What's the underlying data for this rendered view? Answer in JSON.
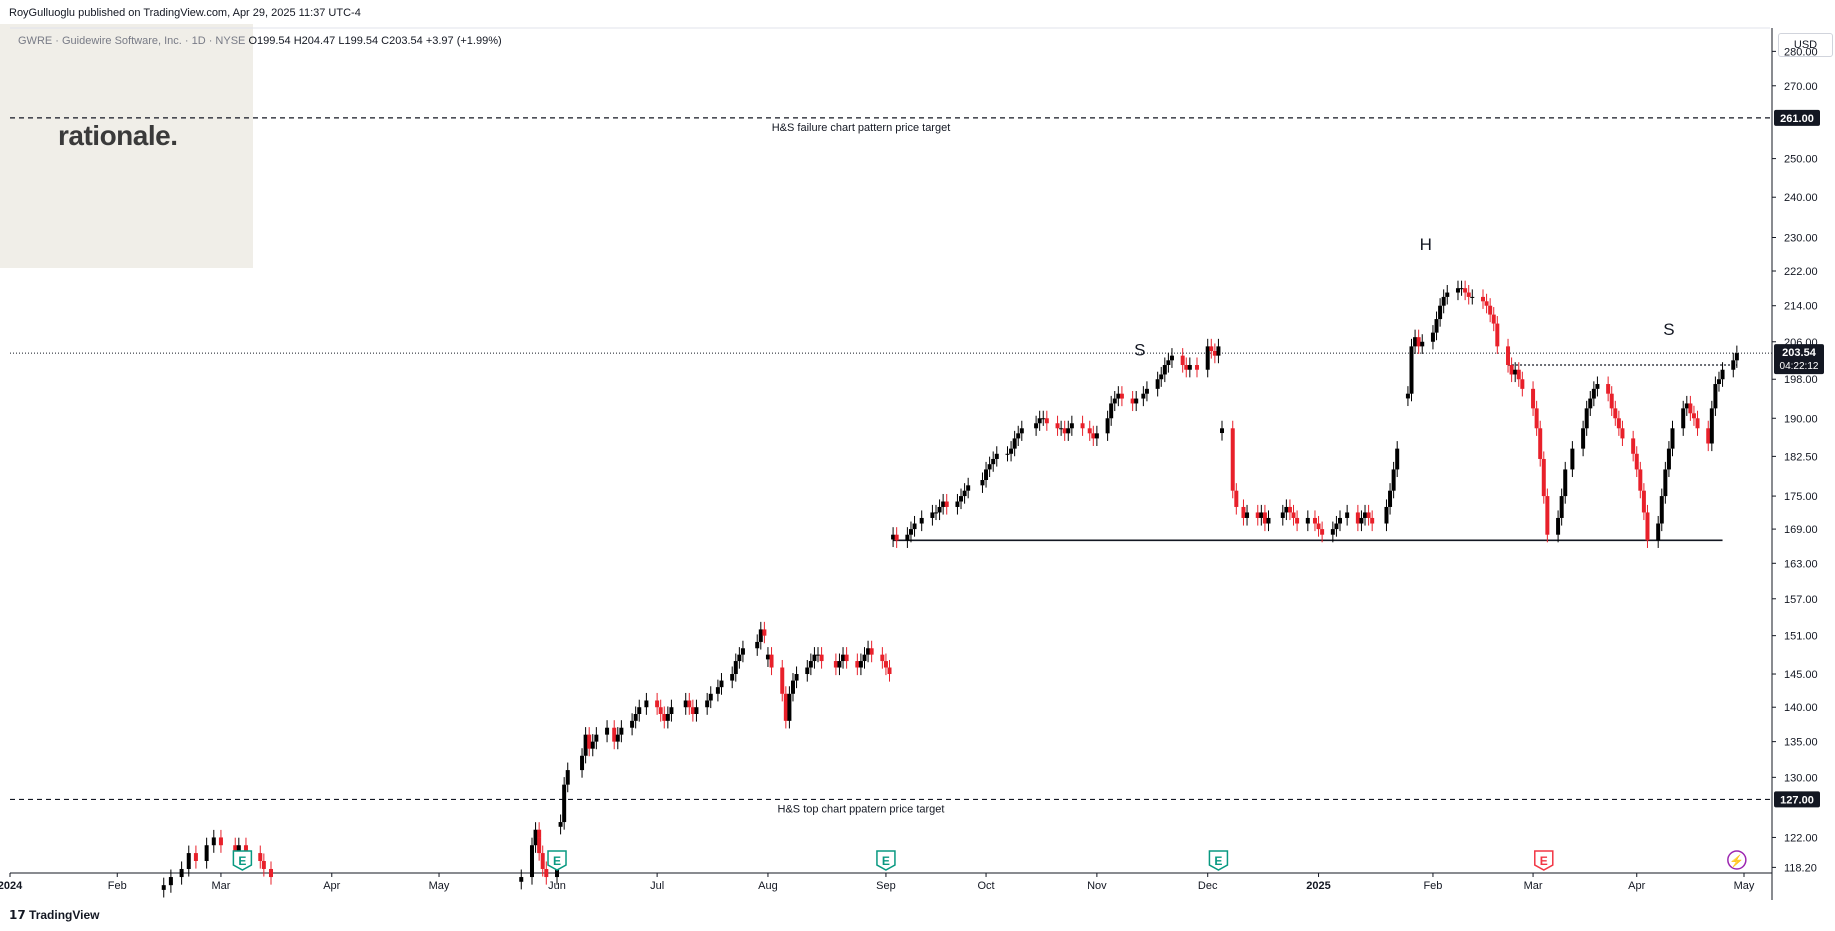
{
  "header": {
    "published": "RoyGulluoglu published on TradingView.com, Apr 29, 2025 11:37 UTC-4",
    "symbol": "GWRE · Guidewire Software, Inc. · 1D · NYSE",
    "ohlc": "O199.54 H204.47 L199.54 C203.54 +3.97 (+1.99%)"
  },
  "watermark": "rationale.",
  "currency": "USD",
  "footer_brand": "TradingView",
  "colors": {
    "up": "#000000",
    "down": "#e8202a",
    "grid": "#f0f3fa",
    "axis": "#131722"
  },
  "chart_data": {
    "type": "candlestick",
    "price_axis": {
      "ticks": [
        280.0,
        270.0,
        261.0,
        250.0,
        240.0,
        230.0,
        222.0,
        214.0,
        206.0,
        198.0,
        190.0,
        182.5,
        175.0,
        169.0,
        163.0,
        157.0,
        151.0,
        145.0,
        140.0,
        135.0,
        130.0,
        127.0,
        122.0,
        118.2
      ],
      "tick_labels": [
        "280.00",
        "270.00",
        "250.00",
        "240.00",
        "230.00",
        "222.00",
        "214.00",
        "206.00",
        "198.00",
        "190.00",
        "182.50",
        "175.00",
        "169.00",
        "163.00",
        "157.00",
        "151.00",
        "145.00",
        "140.00",
        "135.00",
        "130.00",
        "122.00",
        "118.20"
      ],
      "scale": "log",
      "ylim": [
        117.5,
        287
      ]
    },
    "time_axis": {
      "labels": [
        "2024",
        "Feb",
        "Mar",
        "Apr",
        "May",
        "Jun",
        "Jul",
        "Aug",
        "Sep",
        "Oct",
        "Nov",
        "Dec",
        "2025",
        "Feb",
        "Mar",
        "Apr",
        "May"
      ],
      "dates": [
        "2024-01-02",
        "2024-02-01",
        "2024-03-01",
        "2024-04-01",
        "2024-05-01",
        "2024-06-03",
        "2024-07-01",
        "2024-08-01",
        "2024-09-03",
        "2024-10-01",
        "2024-11-01",
        "2024-12-02",
        "2025-01-02",
        "2025-02-03",
        "2025-03-03",
        "2025-04-01",
        "2025-05-01"
      ]
    },
    "current_price": {
      "value": 203.54,
      "label": "203.54",
      "countdown": "04:22:12"
    },
    "levels": [
      {
        "value": 261.0,
        "label": "261.00",
        "text": "H&S failure chart pattern price target",
        "style": "dashed"
      },
      {
        "value": 127.0,
        "label": "127.00",
        "text": "H&S top chart ppatern price target",
        "style": "dashed"
      },
      {
        "value": 167.0,
        "text": "",
        "style": "solid",
        "from": "2024-09-05",
        "to": "2025-04-25"
      },
      {
        "value": 201.0,
        "text": "",
        "style": "dotted",
        "from": "2025-02-24",
        "to": "2025-04-29"
      }
    ],
    "pattern_labels": [
      {
        "text": "S",
        "date": "2024-11-13",
        "value": 203
      },
      {
        "text": "H",
        "date": "2025-02-01",
        "value": 227
      },
      {
        "text": "S",
        "date": "2025-04-10",
        "value": 207.5
      }
    ],
    "events": [
      {
        "type": "earnings",
        "glyph": "E",
        "date": "2024-03-07",
        "color": "#089981"
      },
      {
        "type": "earnings",
        "glyph": "E",
        "date": "2024-06-03",
        "color": "#089981"
      },
      {
        "type": "earnings",
        "glyph": "E",
        "date": "2024-09-03",
        "color": "#089981"
      },
      {
        "type": "earnings",
        "glyph": "E",
        "date": "2024-12-05",
        "color": "#089981"
      },
      {
        "type": "earnings",
        "glyph": "E",
        "date": "2025-03-06",
        "color": "#f23645"
      },
      {
        "type": "dividend",
        "glyph": "⚡",
        "date": "2025-04-29",
        "color": "#9c27b0"
      }
    ],
    "segments": [
      {
        "start": "2024-02-14",
        "end": "2024-03-15",
        "prices": [
          116,
          117,
          118,
          120,
          119,
          121,
          122,
          121,
          120,
          121,
          120,
          119,
          118,
          117
        ]
      },
      {
        "start": "2024-05-24",
        "end": "2024-06-03",
        "prices": [
          117,
          121,
          123,
          122,
          120,
          118,
          117,
          118
        ]
      },
      {
        "start": "2024-06-04",
        "end": "2024-07-31",
        "prices": [
          124,
          129,
          131,
          133,
          136,
          134,
          135,
          136,
          137,
          135,
          136,
          137,
          138,
          139,
          140,
          141,
          140,
          139,
          138,
          139,
          140,
          141,
          140,
          139,
          140,
          141,
          142,
          143,
          144,
          145,
          147,
          148,
          149,
          150,
          152,
          151
        ]
      },
      {
        "start": "2024-08-01",
        "end": "2024-09-04",
        "prices": [
          148,
          146,
          142,
          138,
          142,
          144,
          145,
          146,
          147,
          148,
          148,
          147,
          146,
          147,
          148,
          147,
          146,
          147,
          148,
          149,
          148,
          147,
          146,
          145
        ]
      },
      {
        "start": "2024-09-05",
        "end": "2024-12-05",
        "prices": [
          168,
          167,
          168,
          169,
          170,
          171,
          172,
          172,
          173,
          174,
          173,
          174,
          175,
          176,
          177,
          178,
          180,
          181,
          182,
          183,
          183,
          184,
          186,
          187,
          188,
          189,
          190,
          190,
          189,
          188,
          188,
          187,
          188,
          189,
          188,
          187,
          186,
          187,
          190,
          193,
          194,
          195,
          194,
          193,
          194,
          195,
          196,
          198,
          199,
          201,
          202,
          203,
          201,
          200,
          201,
          200,
          205,
          204,
          203,
          205
        ]
      },
      {
        "start": "2024-12-06",
        "end": "2025-01-24",
        "prices": [
          188,
          176,
          173,
          171,
          172,
          171,
          172,
          170,
          171,
          172,
          173,
          172,
          171,
          170,
          171,
          170,
          169,
          168,
          169,
          170,
          171,
          172,
          170,
          171,
          172,
          171,
          170,
          173,
          176,
          180,
          184
        ]
      },
      {
        "start": "2025-01-27",
        "end": "2025-04-29",
        "prices": [
          195,
          205,
          207,
          205,
          206,
          208,
          211,
          214,
          216,
          217,
          218,
          218,
          217,
          216,
          216,
          215,
          214,
          212,
          210,
          205,
          201,
          199,
          200,
          198,
          196,
          192,
          188,
          182,
          175,
          168,
          171,
          175,
          180,
          184,
          188,
          192,
          194,
          196,
          197,
          195,
          192,
          190,
          188,
          186,
          183,
          180,
          176,
          172,
          167,
          170,
          175,
          180,
          184,
          188,
          192,
          193,
          191,
          190,
          188,
          185,
          192,
          197,
          198,
          200,
          202,
          203.54
        ]
      }
    ]
  }
}
